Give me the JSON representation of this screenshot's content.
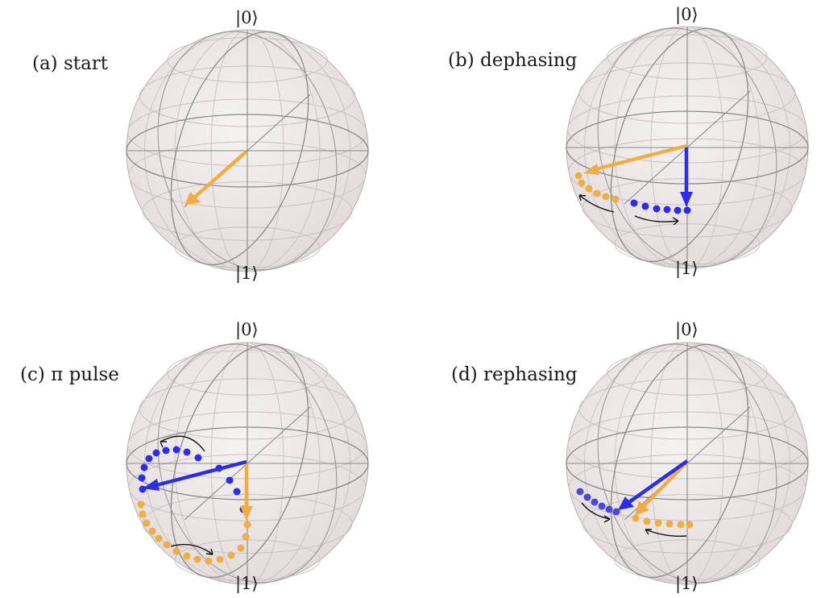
{
  "kets": {
    "top": "|0⟩",
    "bottom": "|1⟩"
  },
  "colors": {
    "orange": "#f0ac45",
    "blue": "#2b2de8",
    "sphere_fill": "#ece6e6",
    "grid": "#8a8a8a",
    "curl": "#111111"
  },
  "panels": [
    {
      "id": "a",
      "label": "(a) start"
    },
    {
      "id": "b",
      "label": "(b) dephasing"
    },
    {
      "id": "c",
      "label": "(c) π pulse"
    },
    {
      "id": "d",
      "label": "(d) rephasing"
    }
  ]
}
